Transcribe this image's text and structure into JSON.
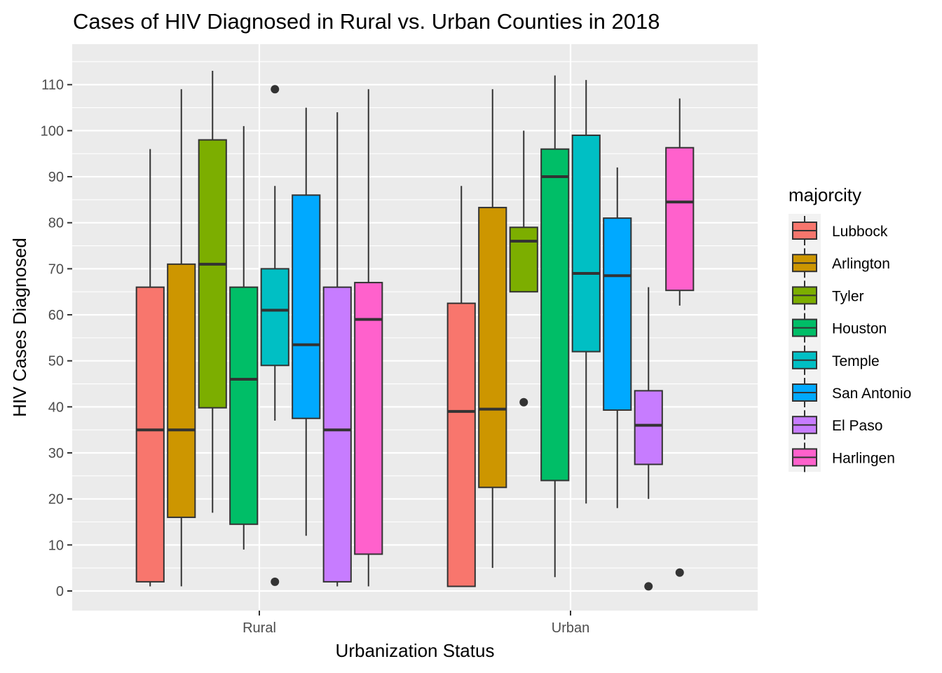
{
  "chart_data": {
    "type": "boxplot",
    "title": "Cases of HIV Diagnosed in Rural vs. Urban Counties in 2018",
    "xlabel": "Urbanization Status",
    "ylabel": "HIV Cases Diagnosed",
    "categories": [
      "Rural",
      "Urban"
    ],
    "ylim": [
      -5,
      118
    ],
    "yticks": [
      0,
      10,
      20,
      30,
      40,
      50,
      60,
      70,
      80,
      90,
      100,
      110
    ],
    "grid": true,
    "legend": {
      "title": "majorcity",
      "placement": "right"
    },
    "series": [
      {
        "name": "Lubbock",
        "color": "#F8766D",
        "boxes": [
          {
            "category": "Rural",
            "min": 1,
            "q1": 2,
            "median": 35,
            "q3": 66,
            "max": 96,
            "outliers": []
          },
          {
            "category": "Urban",
            "min": 1,
            "q1": 1,
            "median": 39,
            "q3": 62.5,
            "max": 88,
            "outliers": []
          }
        ]
      },
      {
        "name": "Arlington",
        "color": "#CD9600",
        "boxes": [
          {
            "category": "Rural",
            "min": 1,
            "q1": 16,
            "median": 35,
            "q3": 71,
            "max": 109,
            "outliers": []
          },
          {
            "category": "Urban",
            "min": 5,
            "q1": 22.5,
            "median": 39.5,
            "q3": 83.3,
            "max": 109,
            "outliers": []
          }
        ]
      },
      {
        "name": "Tyler",
        "color": "#7CAE00",
        "boxes": [
          {
            "category": "Rural",
            "min": 17,
            "q1": 39.8,
            "median": 71,
            "q3": 98,
            "max": 113,
            "outliers": []
          },
          {
            "category": "Urban",
            "min": 65,
            "q1": 65,
            "median": 76,
            "q3": 79,
            "max": 100,
            "outliers": [
              41
            ]
          }
        ]
      },
      {
        "name": "Houston",
        "color": "#00BE67",
        "boxes": [
          {
            "category": "Rural",
            "min": 9,
            "q1": 14.5,
            "median": 46,
            "q3": 66,
            "max": 101,
            "outliers": []
          },
          {
            "category": "Urban",
            "min": 3,
            "q1": 24,
            "median": 90,
            "q3": 96,
            "max": 112,
            "outliers": []
          }
        ]
      },
      {
        "name": "Temple",
        "color": "#00BFC4",
        "boxes": [
          {
            "category": "Rural",
            "min": 37,
            "q1": 49,
            "median": 61,
            "q3": 70,
            "max": 88,
            "outliers": [
              109,
              2
            ]
          },
          {
            "category": "Urban",
            "min": 19,
            "q1": 52,
            "median": 69,
            "q3": 99,
            "max": 111,
            "outliers": []
          }
        ]
      },
      {
        "name": "San Antonio",
        "color": "#00A9FF",
        "boxes": [
          {
            "category": "Rural",
            "min": 12,
            "q1": 37.5,
            "median": 53.5,
            "q3": 86,
            "max": 105,
            "outliers": []
          },
          {
            "category": "Urban",
            "min": 18,
            "q1": 39.3,
            "median": 68.5,
            "q3": 81,
            "max": 92,
            "outliers": []
          }
        ]
      },
      {
        "name": "El Paso",
        "color": "#C77CFF",
        "boxes": [
          {
            "category": "Rural",
            "min": 1,
            "q1": 2,
            "median": 35,
            "q3": 66,
            "max": 104,
            "outliers": []
          },
          {
            "category": "Urban",
            "min": 20,
            "q1": 27.5,
            "median": 36,
            "q3": 43.5,
            "max": 66,
            "outliers": [
              1
            ]
          }
        ]
      },
      {
        "name": "Harlingen",
        "color": "#FF61CC",
        "boxes": [
          {
            "category": "Rural",
            "min": 1,
            "q1": 8,
            "median": 59,
            "q3": 67,
            "max": 109,
            "outliers": []
          },
          {
            "category": "Urban",
            "min": 62,
            "q1": 65.3,
            "median": 84.5,
            "q3": 96.3,
            "max": 107,
            "outliers": [
              4
            ]
          }
        ]
      }
    ]
  }
}
